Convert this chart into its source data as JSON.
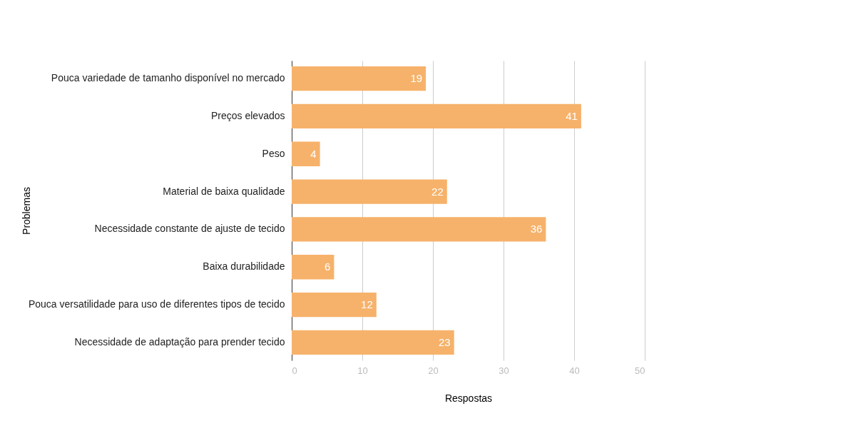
{
  "chart_data": {
    "type": "bar",
    "orientation": "horizontal",
    "xlabel": "Respostas",
    "ylabel": "Problemas",
    "categories": [
      "Pouca variedade de tamanho disponível no mercado",
      "Preços elevados",
      "Peso",
      "Material de baixa qualidade",
      "Necessidade constante de ajuste de tecido",
      "Baixa durabilidade",
      "Pouca versatilidade para uso de diferentes tipos de tecido",
      "Necessidade de adaptação para prender tecido"
    ],
    "values": [
      19,
      41,
      4,
      22,
      36,
      6,
      12,
      23
    ],
    "color": "#f6b26b",
    "xlim": [
      0,
      50
    ],
    "xticks": [
      0,
      10,
      20,
      30,
      40,
      50
    ],
    "grid": "x",
    "data_labels": true
  }
}
